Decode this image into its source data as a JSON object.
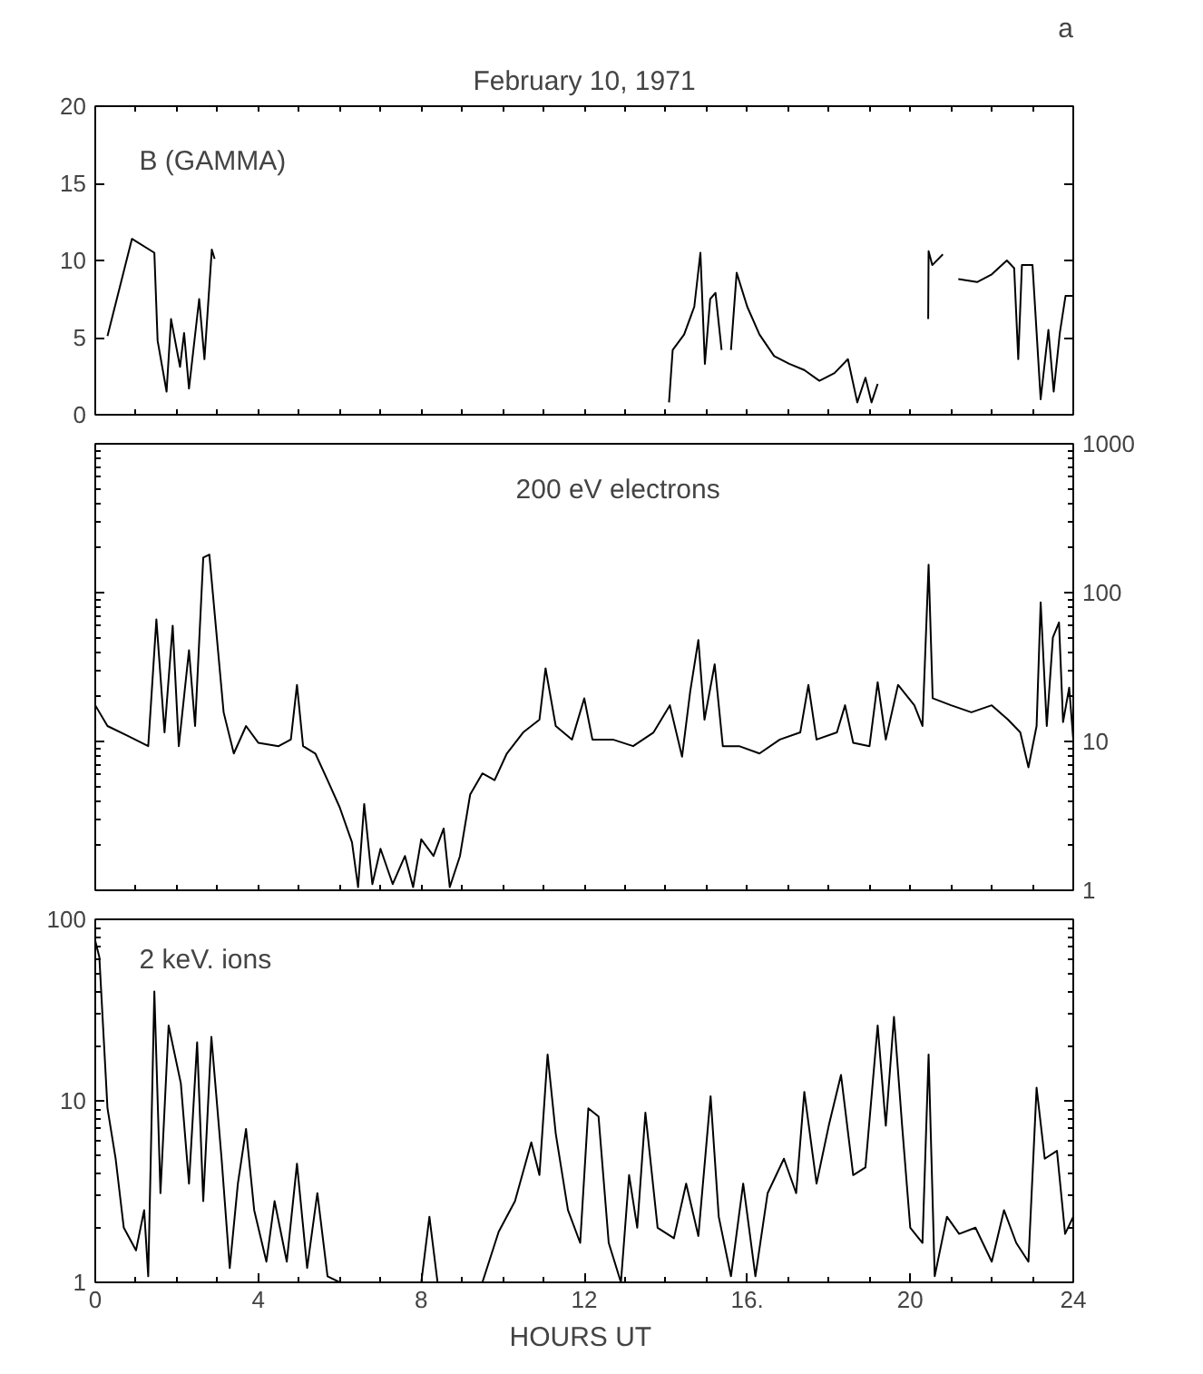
{
  "chart_data": [
    {
      "type": "line",
      "title": "February 10, 1971",
      "annotations": [
        "B (GAMMA)",
        "a"
      ],
      "xlim": [
        0,
        24
      ],
      "ylim": [
        0,
        20
      ],
      "yticks": [
        0,
        5,
        10,
        15,
        20
      ],
      "tick_labels": "y",
      "grid": false,
      "series": [
        {
          "color": "#000000",
          "x": [
            0.3,
            0.9,
            1.45,
            1.53,
            1.75,
            1.86,
            2.08,
            2.18,
            2.3,
            2.55,
            2.68,
            2.86,
            2.93,
            3.0,
            14.08,
            14.17,
            14.45,
            14.7,
            14.85,
            14.96,
            15.09,
            15.22,
            15.37,
            15.5,
            15.6,
            15.74,
            16.0,
            16.3,
            16.66,
            17.03,
            17.4,
            17.77,
            18.14,
            18.47,
            18.7,
            18.9,
            19.05,
            19.2,
            19.3,
            20.44,
            20.45,
            20.54,
            20.8,
            21.0,
            21.18,
            21.64,
            22.0,
            22.37,
            22.55,
            22.65,
            22.74,
            23.0,
            23.2,
            23.39,
            23.52,
            23.67,
            23.81,
            24.0
          ],
          "values": [
            5.1,
            11.4,
            10.5,
            4.8,
            1.5,
            6.2,
            3.1,
            5.3,
            1.7,
            7.5,
            3.6,
            10.7,
            10.1,
            null,
            0.8,
            4.2,
            5.2,
            7,
            10.5,
            3.3,
            7.5,
            7.9,
            4.2,
            null,
            4.2,
            9.2,
            7,
            5.2,
            3.8,
            3.3,
            2.9,
            2.2,
            2.7,
            3.6,
            0.8,
            2.4,
            0.8,
            2.0,
            null,
            6.2,
            10.6,
            9.7,
            10.4,
            null,
            8.8,
            8.6,
            9.1,
            10.0,
            9.5,
            3.6,
            9.7,
            9.7,
            1.0,
            5.5,
            1.5,
            5.3,
            7.7,
            7.7
          ]
        }
      ]
    },
    {
      "type": "line",
      "annotations": [
        "200 eV  electrons"
      ],
      "xlim": [
        0,
        24
      ],
      "ylim": [
        1,
        1000
      ],
      "yticks": [
        1,
        10,
        100,
        1000
      ],
      "log": "y",
      "tick_labels": "y",
      "grid": false,
      "series": [
        {
          "color": "#000000",
          "x": [
            0.0,
            0.3,
            0.8,
            1.3,
            1.5,
            1.7,
            1.9,
            2.05,
            2.3,
            2.45,
            2.65,
            2.8,
            2.95,
            3.15,
            3.4,
            3.7,
            4.0,
            4.5,
            4.8,
            4.95,
            5.1,
            5.4,
            5.7,
            6.0,
            6.3,
            6.45,
            6.6,
            6.8,
            7.0,
            7.3,
            7.6,
            7.8,
            8.0,
            8.3,
            8.55,
            8.7,
            8.95,
            9.2,
            9.5,
            9.8,
            10.1,
            10.5,
            10.9,
            11.05,
            11.3,
            11.7,
            12.0,
            12.2,
            12.7,
            13.2,
            13.7,
            14.1,
            14.4,
            14.6,
            14.8,
            14.95,
            15.2,
            15.4,
            15.8,
            16.3,
            16.8,
            17.3,
            17.5,
            17.7,
            18.2,
            18.4,
            18.6,
            19.0,
            19.2,
            19.4,
            19.7,
            20.1,
            20.3,
            20.45,
            20.55,
            21.0,
            21.5,
            22.0,
            22.4,
            22.7,
            22.9,
            23.1,
            23.2,
            23.35,
            23.5,
            23.65,
            23.75,
            23.9,
            24.0
          ],
          "values": [
            17.5,
            12.7,
            10.9,
            9.3,
            66,
            11.5,
            60,
            9.3,
            41,
            12.7,
            172,
            180,
            63,
            15.7,
            8.3,
            12.7,
            9.8,
            9.3,
            10.3,
            24,
            9.3,
            8.3,
            5.5,
            3.6,
            2.1,
            1.05,
            3.8,
            1.1,
            1.9,
            1.1,
            1.7,
            1.05,
            2.2,
            1.7,
            2.6,
            1.05,
            1.7,
            4.4,
            6.1,
            5.5,
            8.3,
            11.5,
            14,
            31,
            12.7,
            10.3,
            19.5,
            10.3,
            10.3,
            9.3,
            11.5,
            17.5,
            7.9,
            21.7,
            48,
            14,
            33,
            9.3,
            9.3,
            8.3,
            10.3,
            11.5,
            24,
            10.3,
            11.5,
            17.5,
            9.8,
            9.3,
            25,
            10.3,
            24,
            17.5,
            12.7,
            154,
            19.5,
            17.5,
            15.7,
            17.5,
            14,
            11.5,
            6.7,
            12.7,
            86,
            12.7,
            50,
            63,
            13.5,
            23,
            10.3
          ]
        }
      ]
    },
    {
      "type": "line",
      "annotations": [
        "2 keV. ions"
      ],
      "xlabel": "HOURS  UT",
      "xlim": [
        0,
        24
      ],
      "xticks": [
        0,
        4,
        8,
        12,
        {
          "value": 16,
          "label": "16."
        },
        20,
        24
      ],
      "ylim": [
        1,
        100
      ],
      "yticks": [
        1,
        10,
        100
      ],
      "log": "y",
      "grid": false,
      "series": [
        {
          "color": "#000000",
          "x": [
            0.0,
            0.1,
            0.3,
            0.5,
            0.7,
            1.0,
            1.2,
            1.3,
            1.45,
            1.6,
            1.8,
            2.1,
            2.3,
            2.5,
            2.65,
            2.85,
            3.1,
            3.3,
            3.5,
            3.7,
            3.9,
            4.2,
            4.4,
            4.7,
            4.95,
            5.2,
            5.45,
            5.7,
            6.0,
            8.0,
            8.2,
            8.4,
            9.5,
            9.9,
            10.3,
            10.7,
            10.9,
            11.1,
            11.3,
            11.6,
            11.9,
            12.1,
            12.35,
            12.6,
            12.9,
            13.1,
            13.3,
            13.5,
            13.8,
            14.2,
            14.5,
            14.8,
            15.1,
            15.3,
            15.6,
            15.9,
            16.2,
            16.5,
            16.9,
            17.2,
            17.4,
            17.7,
            18.0,
            18.3,
            18.6,
            18.9,
            19.2,
            19.4,
            19.6,
            19.8,
            20.0,
            20.3,
            20.45,
            20.6,
            20.9,
            21.2,
            21.6,
            22.0,
            22.3,
            22.6,
            22.9,
            23.1,
            23.3,
            23.6,
            23.8,
            24.0
          ],
          "values": [
            76,
            62,
            9.1,
            4.8,
            2.0,
            1.5,
            2.5,
            1.08,
            40,
            3.1,
            26,
            12.5,
            3.5,
            21,
            2.8,
            22.5,
            4.8,
            1.2,
            3.5,
            7,
            2.5,
            1.3,
            2.8,
            1.3,
            4.5,
            1.2,
            3.1,
            1.08,
            1,
            1,
            2.3,
            1,
            1,
            1.9,
            2.8,
            5.9,
            3.9,
            18,
            6.6,
            2.5,
            1.65,
            9.1,
            8.2,
            1.65,
            1,
            3.9,
            2.0,
            8.6,
            2.0,
            1.75,
            3.5,
            1.8,
            10.6,
            2.3,
            1.08,
            3.5,
            1.08,
            3.1,
            4.8,
            3.1,
            11.2,
            3.5,
            7.3,
            13.9,
            3.9,
            4.3,
            26,
            7.3,
            29,
            7.3,
            2.0,
            1.65,
            18,
            1.08,
            2.3,
            1.85,
            2.0,
            1.3,
            2.5,
            1.65,
            1.3,
            11.8,
            4.8,
            5.3,
            1.85,
            2.3
          ]
        }
      ]
    }
  ]
}
